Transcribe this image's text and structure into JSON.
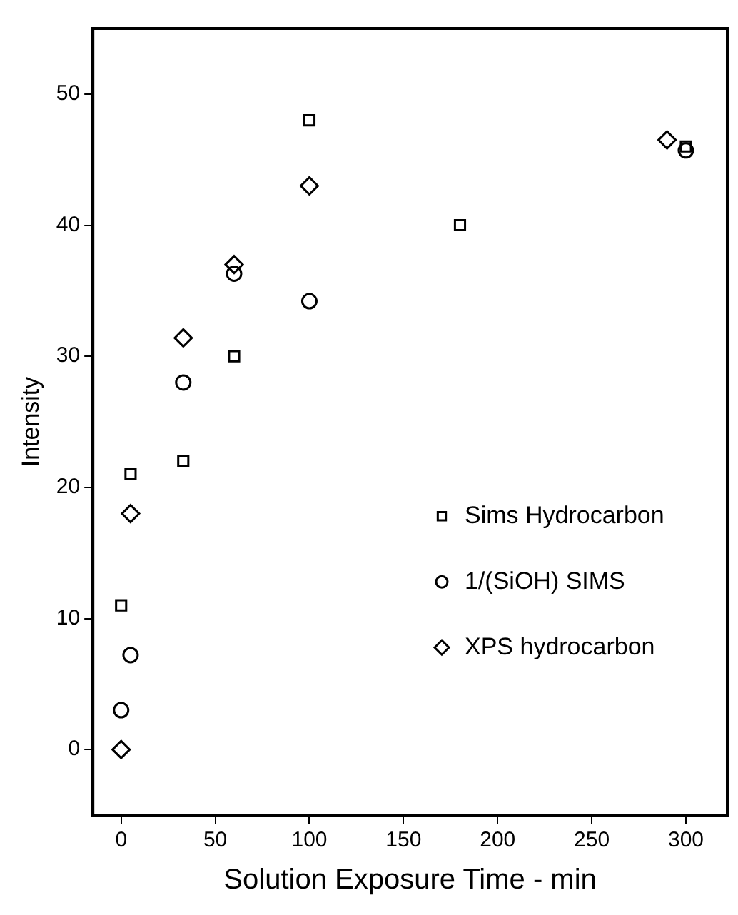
{
  "chart_data": {
    "type": "scatter",
    "xlabel": "Solution Exposure Time - min",
    "ylabel": "Intensity",
    "xlim": [
      -15,
      322
    ],
    "xticks": [
      0,
      50,
      100,
      150,
      200,
      250,
      300
    ],
    "ylim": [
      -5,
      55
    ],
    "yticks": [
      0,
      10,
      20,
      30,
      40,
      50
    ],
    "grid": false,
    "legend": "right",
    "series": [
      {
        "name": "Sims Hydrocarbon",
        "color": "#000000",
        "marker": "square",
        "x": [
          0,
          5,
          33,
          60,
          100,
          180,
          300
        ],
        "values": [
          11,
          21,
          22,
          30,
          48,
          40,
          46
        ]
      },
      {
        "name": "1/(SiOH) SIMS",
        "color": "#000000",
        "marker": "circle",
        "x": [
          0,
          5,
          33,
          60,
          100,
          300
        ],
        "values": [
          3,
          7.2,
          28,
          36.3,
          34.2,
          45.7
        ]
      },
      {
        "name": "XPS hydrocarbon",
        "color": "#000000",
        "marker": "diamond",
        "x": [
          0,
          5,
          33,
          60,
          100,
          290
        ],
        "values": [
          0,
          18,
          31.4,
          37,
          43,
          46.5
        ]
      }
    ]
  }
}
